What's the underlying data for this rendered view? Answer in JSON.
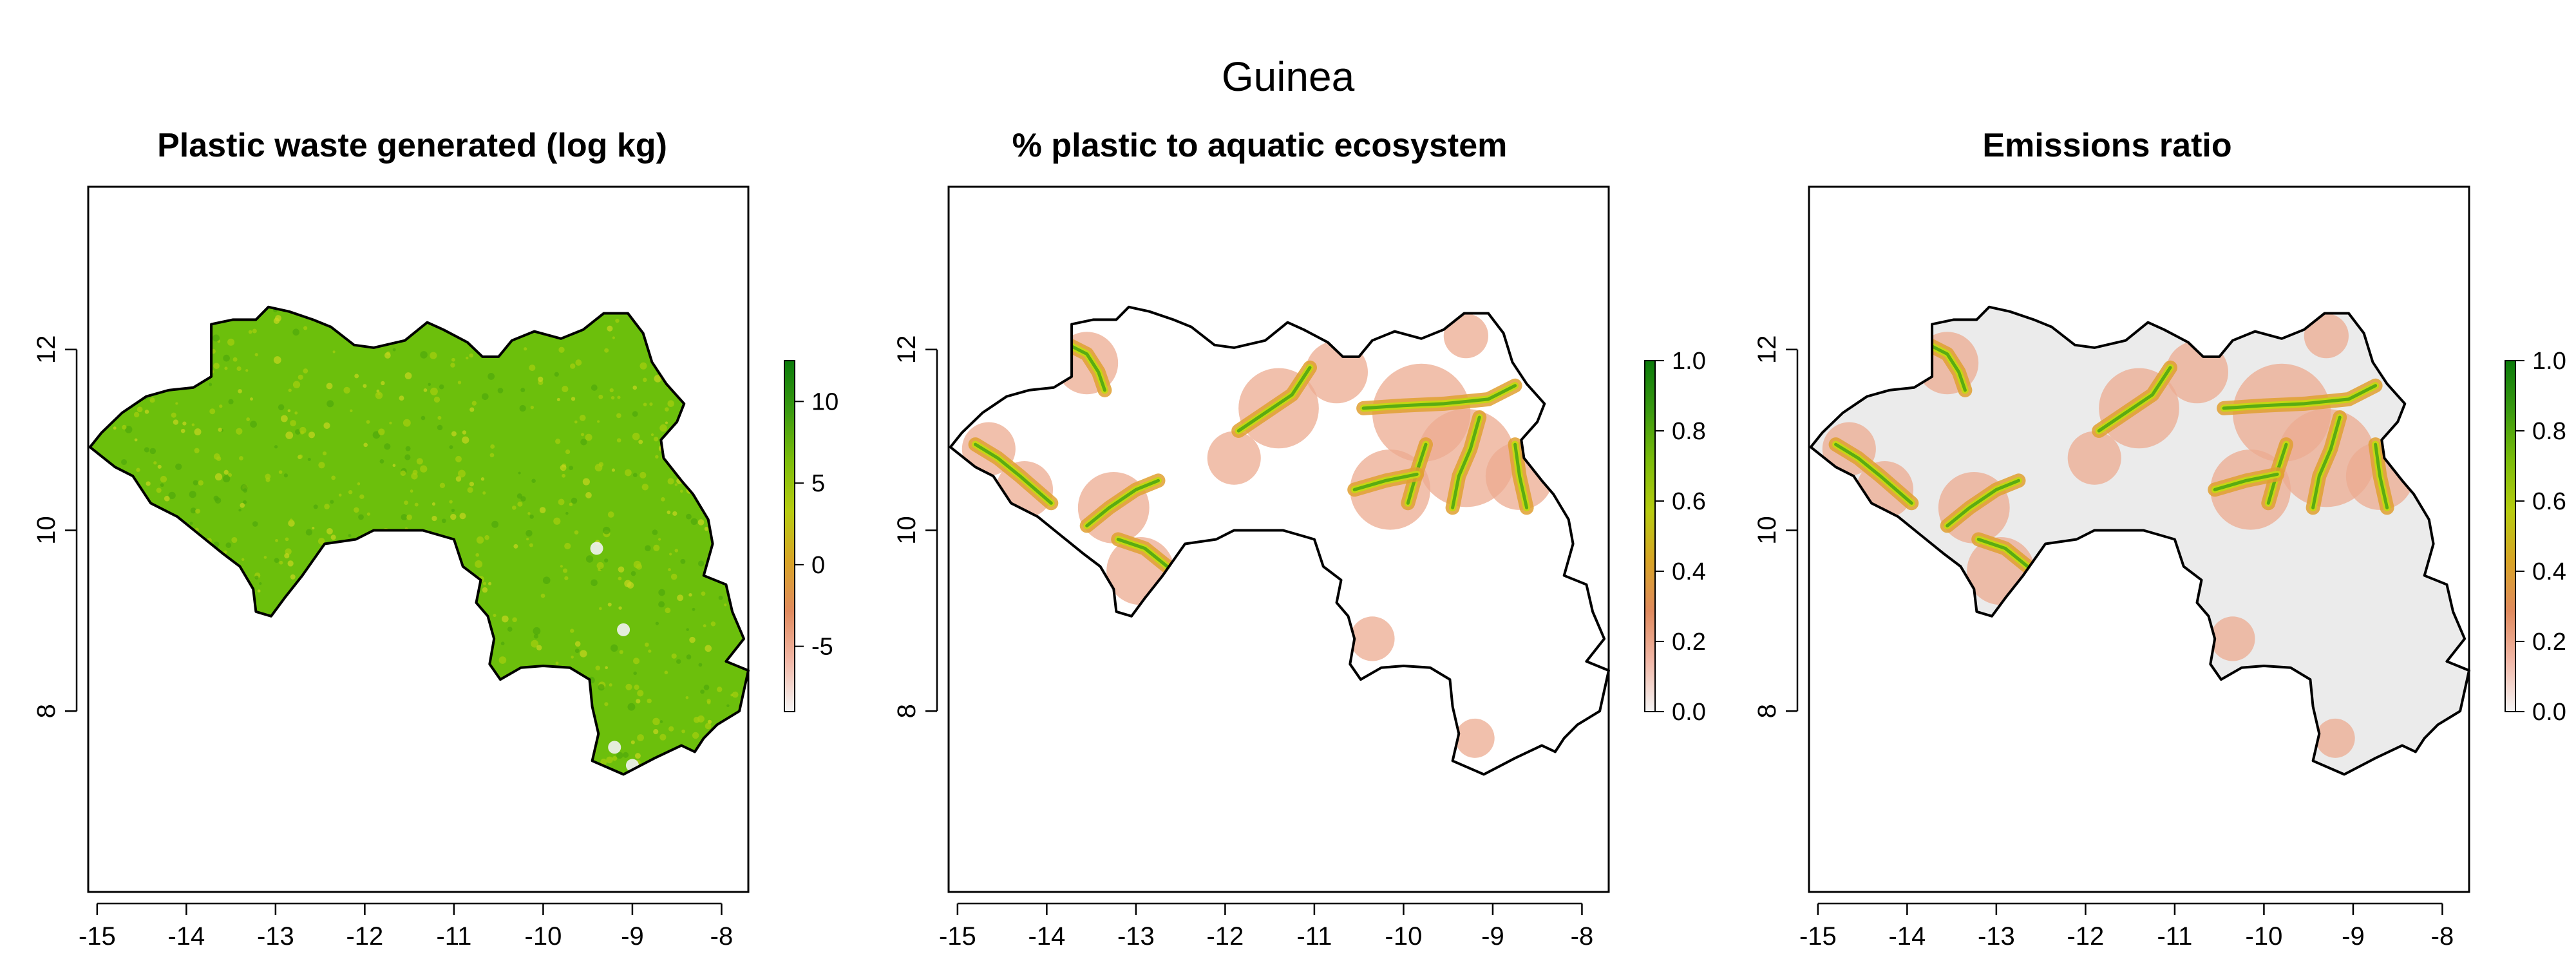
{
  "title": "Guinea",
  "chart_data": [
    {
      "type": "heatmap",
      "title": "Plastic waste generated (log kg)",
      "x_ticks": [
        -15,
        -14,
        -13,
        -12,
        -11,
        -10,
        -9,
        -8
      ],
      "y_ticks": [
        8,
        10,
        12
      ],
      "xlim": [
        -15.1,
        -7.7
      ],
      "ylim": [
        6.0,
        13.8
      ],
      "legend": {
        "ticks": [
          -5,
          0,
          5,
          10
        ],
        "range": [
          -9,
          12.5
        ],
        "colors": [
          "#f5f5f5",
          "#f2b8a8",
          "#e08a5e",
          "#d8a426",
          "#b7cc10",
          "#7cbd0a",
          "#3a9a10",
          "#0a7a0a"
        ]
      },
      "fill_color": "#6cbf0c",
      "outline_color": "#000000"
    },
    {
      "type": "heatmap",
      "title": "% plastic to aquatic ecosystem",
      "x_ticks": [
        -15,
        -14,
        -13,
        -12,
        -11,
        -10,
        -9,
        -8
      ],
      "y_ticks": [
        8,
        10,
        12
      ],
      "xlim": [
        -15.1,
        -7.7
      ],
      "ylim": [
        6.0,
        13.8
      ],
      "legend": {
        "ticks": [
          0.0,
          0.2,
          0.4,
          0.6,
          0.8,
          1.0
        ],
        "range": [
          0,
          1
        ],
        "colors": [
          "#f5f5f5",
          "#f2b8a8",
          "#e08a5e",
          "#d8a426",
          "#b7cc10",
          "#7cbd0a",
          "#3a9a10",
          "#0a7a0a"
        ]
      },
      "fill_color": "#ffffff",
      "outline_color": "#000000"
    },
    {
      "type": "heatmap",
      "title": "Emissions ratio",
      "x_ticks": [
        -15,
        -14,
        -13,
        -12,
        -11,
        -10,
        -9,
        -8
      ],
      "y_ticks": [
        8,
        10,
        12
      ],
      "xlim": [
        -15.1,
        -7.7
      ],
      "ylim": [
        6.0,
        13.8
      ],
      "legend": {
        "ticks": [
          0.0,
          0.2,
          0.4,
          0.6,
          0.8,
          1.0
        ],
        "range": [
          0,
          1
        ],
        "colors": [
          "#f5f5f5",
          "#f2b8a8",
          "#e08a5e",
          "#d8a426",
          "#b7cc10",
          "#7cbd0a",
          "#3a9a10",
          "#0a7a0a"
        ]
      },
      "fill_color": "#ebebeb",
      "outline_color": "#000000"
    }
  ]
}
